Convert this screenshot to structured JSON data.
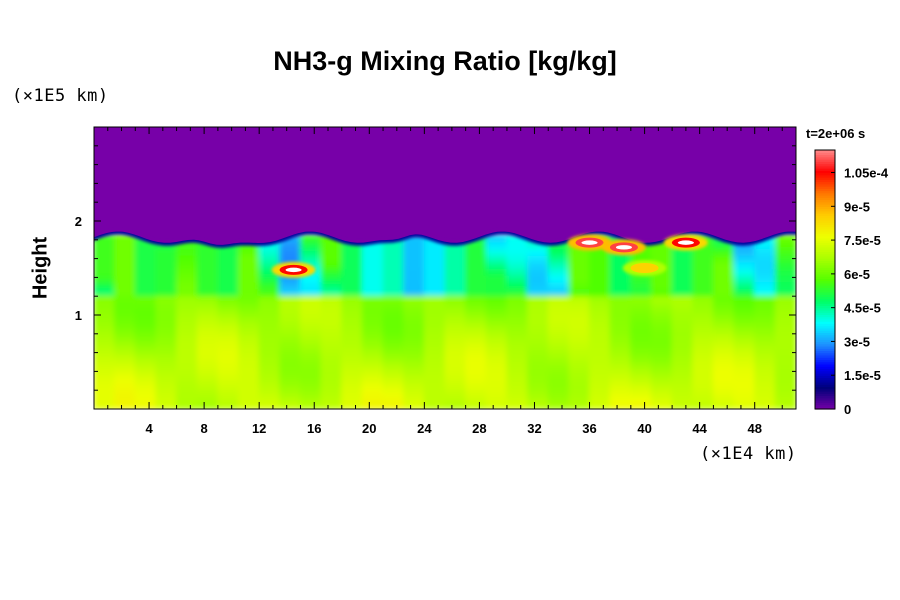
{
  "chart_data": {
    "type": "heatmap",
    "title": "NH3-g Mixing Ratio [kg/kg]",
    "ylabel": "Height",
    "xlabel": "",
    "x_exponent_label": "(×1E4 km)",
    "y_exponent_label": "(×1E5 km)",
    "time_label": "t=2e+06 s",
    "xlim": [
      0,
      51
    ],
    "ylim": [
      0,
      3
    ],
    "x_ticks": [
      4,
      8,
      12,
      16,
      20,
      24,
      28,
      32,
      36,
      40,
      44,
      48
    ],
    "y_ticks": [
      1,
      2
    ],
    "colorbar": {
      "range": [
        0,
        0.000115
      ],
      "tick_values": [
        0,
        1.5e-05,
        3e-05,
        4.5e-05,
        6e-05,
        7.5e-05,
        9e-05,
        0.000105
      ],
      "tick_labels": [
        "0",
        "1.5e-5",
        "3e-5",
        "4.5e-5",
        "6e-5",
        "7.5e-5",
        "9e-5",
        "1.05e-4"
      ]
    },
    "description_levels": {
      "upper_layer_value": 0,
      "lower_layer_range": [
        6e-05,
        7.5e-05
      ],
      "boundary_height": 1.85,
      "peak_value": 0.000112
    },
    "hotspots": [
      {
        "x": 14.5,
        "y": 1.48,
        "value": 0.000105
      },
      {
        "x": 36.0,
        "y": 1.77,
        "value": 0.00011
      },
      {
        "x": 38.5,
        "y": 1.72,
        "value": 0.00011
      },
      {
        "x": 43.0,
        "y": 1.77,
        "value": 0.000105
      },
      {
        "x": 40.0,
        "y": 1.5,
        "value": 8.5e-05
      }
    ],
    "colors": {
      "zero": "#7700a8",
      "ramp": [
        "#7700a8",
        "#00007a",
        "#0000ff",
        "#1e90ff",
        "#00ffff",
        "#00ff66",
        "#55ff00",
        "#aaff00",
        "#eeff00",
        "#ffcc00",
        "#ff7700",
        "#ff0000",
        "#ff8888"
      ]
    }
  }
}
